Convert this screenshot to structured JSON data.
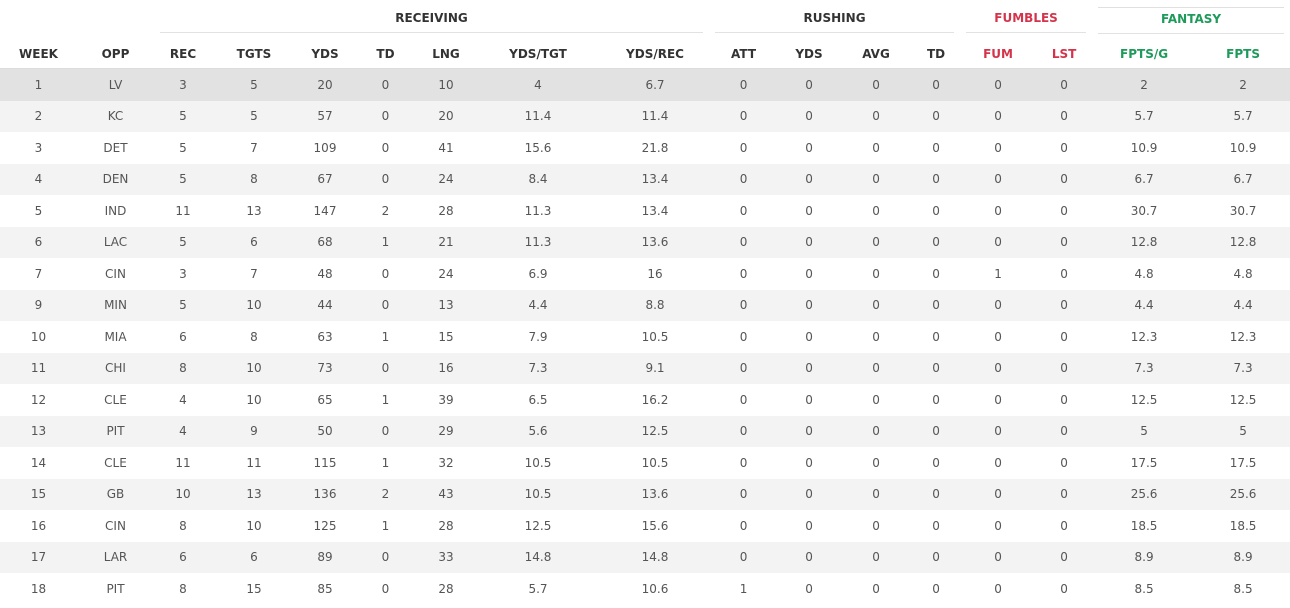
{
  "groups": {
    "receiving": "RECEIVING",
    "rushing": "RUSHING",
    "fumbles": "FUMBLES",
    "fantasy": "FANTASY"
  },
  "colors": {
    "fumbles": "#d4344b",
    "fantasy": "#1e9a5a",
    "highlight_row": "#e2e2e2",
    "alt_row": "#f3f3f3"
  },
  "columns": [
    "WEEK",
    "OPP",
    "REC",
    "TGTS",
    "YDS",
    "TD",
    "LNG",
    "YDS/TGT",
    "YDS/REC",
    "ATT",
    "YDS",
    "AVG",
    "TD",
    "FUM",
    "LST",
    "FPTS/G",
    "FPTS"
  ],
  "rows": [
    [
      "1",
      "LV",
      "3",
      "5",
      "20",
      "0",
      "10",
      "4",
      "6.7",
      "0",
      "0",
      "0",
      "0",
      "0",
      "0",
      "2",
      "2"
    ],
    [
      "2",
      "KC",
      "5",
      "5",
      "57",
      "0",
      "20",
      "11.4",
      "11.4",
      "0",
      "0",
      "0",
      "0",
      "0",
      "0",
      "5.7",
      "5.7"
    ],
    [
      "3",
      "DET",
      "5",
      "7",
      "109",
      "0",
      "41",
      "15.6",
      "21.8",
      "0",
      "0",
      "0",
      "0",
      "0",
      "0",
      "10.9",
      "10.9"
    ],
    [
      "4",
      "DEN",
      "5",
      "8",
      "67",
      "0",
      "24",
      "8.4",
      "13.4",
      "0",
      "0",
      "0",
      "0",
      "0",
      "0",
      "6.7",
      "6.7"
    ],
    [
      "5",
      "IND",
      "11",
      "13",
      "147",
      "2",
      "28",
      "11.3",
      "13.4",
      "0",
      "0",
      "0",
      "0",
      "0",
      "0",
      "30.7",
      "30.7"
    ],
    [
      "6",
      "LAC",
      "5",
      "6",
      "68",
      "1",
      "21",
      "11.3",
      "13.6",
      "0",
      "0",
      "0",
      "0",
      "0",
      "0",
      "12.8",
      "12.8"
    ],
    [
      "7",
      "CIN",
      "3",
      "7",
      "48",
      "0",
      "24",
      "6.9",
      "16",
      "0",
      "0",
      "0",
      "0",
      "1",
      "0",
      "4.8",
      "4.8"
    ],
    [
      "9",
      "MIN",
      "5",
      "10",
      "44",
      "0",
      "13",
      "4.4",
      "8.8",
      "0",
      "0",
      "0",
      "0",
      "0",
      "0",
      "4.4",
      "4.4"
    ],
    [
      "10",
      "MIA",
      "6",
      "8",
      "63",
      "1",
      "15",
      "7.9",
      "10.5",
      "0",
      "0",
      "0",
      "0",
      "0",
      "0",
      "12.3",
      "12.3"
    ],
    [
      "11",
      "CHI",
      "8",
      "10",
      "73",
      "0",
      "16",
      "7.3",
      "9.1",
      "0",
      "0",
      "0",
      "0",
      "0",
      "0",
      "7.3",
      "7.3"
    ],
    [
      "12",
      "CLE",
      "4",
      "10",
      "65",
      "1",
      "39",
      "6.5",
      "16.2",
      "0",
      "0",
      "0",
      "0",
      "0",
      "0",
      "12.5",
      "12.5"
    ],
    [
      "13",
      "PIT",
      "4",
      "9",
      "50",
      "0",
      "29",
      "5.6",
      "12.5",
      "0",
      "0",
      "0",
      "0",
      "0",
      "0",
      "5",
      "5"
    ],
    [
      "14",
      "CLE",
      "11",
      "11",
      "115",
      "1",
      "32",
      "10.5",
      "10.5",
      "0",
      "0",
      "0",
      "0",
      "0",
      "0",
      "17.5",
      "17.5"
    ],
    [
      "15",
      "GB",
      "10",
      "13",
      "136",
      "2",
      "43",
      "10.5",
      "13.6",
      "0",
      "0",
      "0",
      "0",
      "0",
      "0",
      "25.6",
      "25.6"
    ],
    [
      "16",
      "CIN",
      "8",
      "10",
      "125",
      "1",
      "28",
      "12.5",
      "15.6",
      "0",
      "0",
      "0",
      "0",
      "0",
      "0",
      "18.5",
      "18.5"
    ],
    [
      "17",
      "LAR",
      "6",
      "6",
      "89",
      "0",
      "33",
      "14.8",
      "14.8",
      "0",
      "0",
      "0",
      "0",
      "0",
      "0",
      "8.9",
      "8.9"
    ],
    [
      "18",
      "PIT",
      "8",
      "15",
      "85",
      "0",
      "28",
      "5.7",
      "10.6",
      "1",
      "0",
      "0",
      "0",
      "0",
      "0",
      "8.5",
      "8.5"
    ]
  ]
}
